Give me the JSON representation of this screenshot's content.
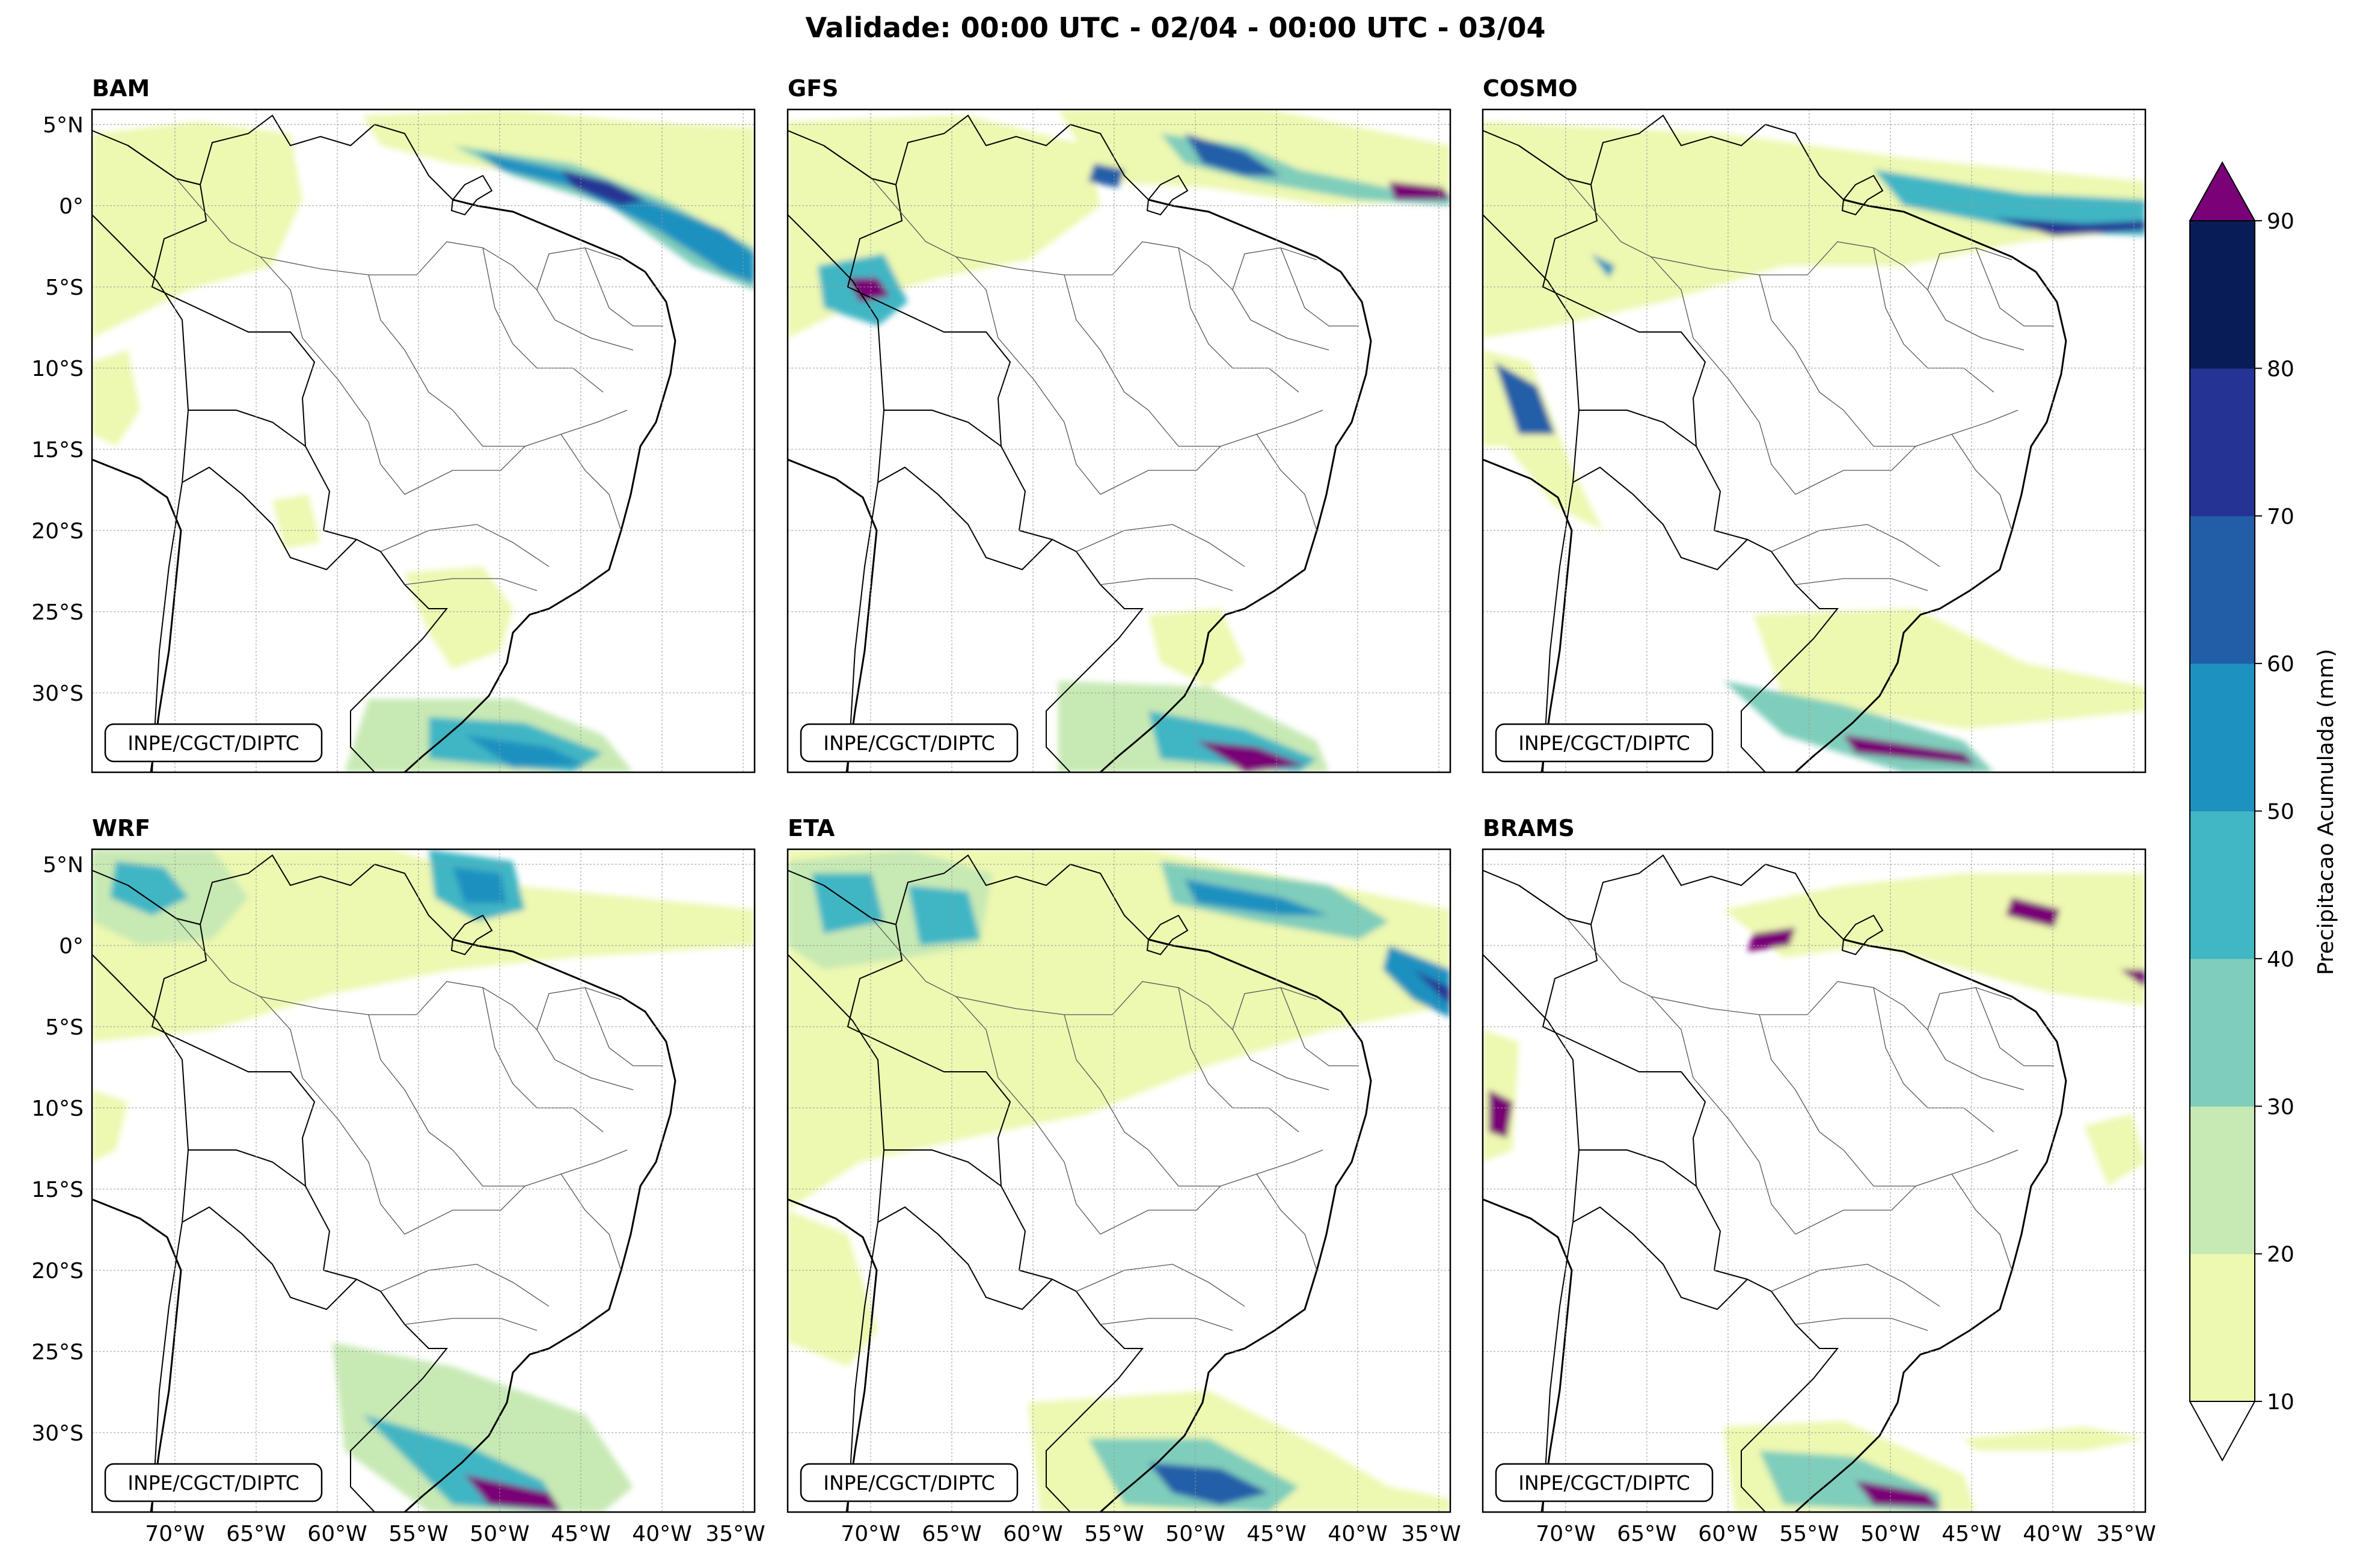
{
  "figure": {
    "title": "Validade: 00:00 UTC - 02/04 - 00:00 UTC - 03/04",
    "credit": "INPE/CGCT/DIPTC"
  },
  "panels": [
    {
      "name": "BAM"
    },
    {
      "name": "GFS"
    },
    {
      "name": "COSMO"
    },
    {
      "name": "WRF"
    },
    {
      "name": "ETA"
    },
    {
      "name": "BRAMS"
    }
  ],
  "axes": {
    "lat_labels": [
      "5°N",
      "0°",
      "5°S",
      "10°S",
      "15°S",
      "20°S",
      "25°S",
      "30°S"
    ],
    "lon_labels": [
      "70°W",
      "65°W",
      "60°W",
      "55°W",
      "50°W",
      "45°W",
      "40°W",
      "35°W"
    ]
  },
  "colorbar": {
    "label": "Precipitacao Acumulada (mm)",
    "ticks": [
      "10",
      "20",
      "30",
      "40",
      "50",
      "60",
      "70",
      "80",
      "90"
    ],
    "colors": [
      "#edf8b1",
      "#c7e9b4",
      "#7fcdbb",
      "#41b6c4",
      "#1d91c0",
      "#225ea8",
      "#253494",
      "#081d58"
    ],
    "over_color": "#7a0177",
    "under_color": "#ffffff"
  },
  "chart_data": {
    "type": "heatmap",
    "units": "mm",
    "levels": [
      10,
      20,
      30,
      40,
      50,
      60,
      70,
      80,
      90
    ],
    "lon_ticks": [
      -70,
      -65,
      -60,
      -55,
      -50,
      -45,
      -40,
      -35
    ],
    "lat_ticks": [
      5,
      0,
      -5,
      -10,
      -15,
      -20,
      -25,
      -30
    ]
  }
}
